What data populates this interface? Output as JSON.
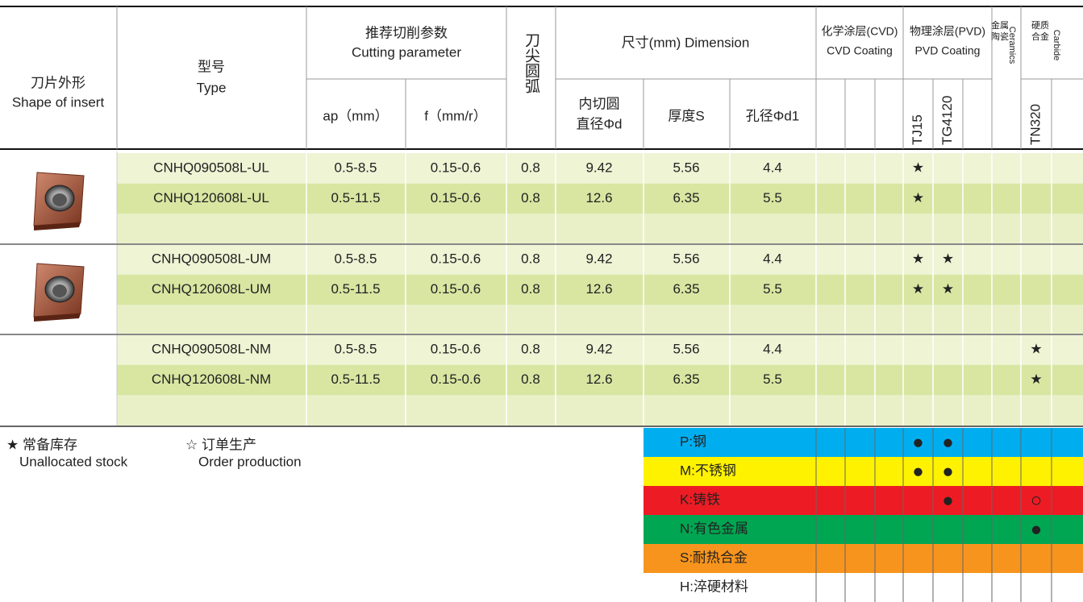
{
  "header": {
    "shape": [
      "刀片外形",
      "Shape of insert"
    ],
    "type": [
      "型号",
      "Type"
    ],
    "cutting": [
      "推荐切削参数",
      "Cutting parameter"
    ],
    "ap": "ap（mm）",
    "f": "f（mm/r）",
    "nose": "刀尖圆弧",
    "dimension": "尺寸(mm) Dimension",
    "d": [
      "内切圆",
      "直径Φd"
    ],
    "s": "厚度S",
    "d1": "孔径Φd1",
    "cvd": [
      "化学涂层(CVD)",
      "CVD Coating"
    ],
    "pvd": [
      "物理涂层(PVD)",
      "PVD Coating"
    ],
    "ceramics": [
      "金属",
      "陶瓷",
      "Ceramics"
    ],
    "carbide": [
      "硬质",
      "合金",
      "Carbide"
    ],
    "grades": [
      null,
      null,
      null,
      "TJ15",
      "TG4120",
      null,
      null,
      "TN320",
      null
    ]
  },
  "groups": [
    {
      "rows": [
        {
          "type": "CNHQ090508L-UL",
          "ap": "0.5-8.5",
          "f": "0.15-0.6",
          "r": "0.8",
          "d": "9.42",
          "s": "5.56",
          "d1": "4.4",
          "grades": [
            null,
            null,
            null,
            "★",
            null,
            null,
            null,
            null,
            null
          ]
        },
        {
          "type": "CNHQ120608L-UL",
          "ap": "0.5-11.5",
          "f": "0.15-0.6",
          "r": "0.8",
          "d": "12.6",
          "s": "6.35",
          "d1": "5.5",
          "grades": [
            null,
            null,
            null,
            "★",
            null,
            null,
            null,
            null,
            null
          ]
        }
      ]
    },
    {
      "rows": [
        {
          "type": "CNHQ090508L-UM",
          "ap": "0.5-8.5",
          "f": "0.15-0.6",
          "r": "0.8",
          "d": "9.42",
          "s": "5.56",
          "d1": "4.4",
          "grades": [
            null,
            null,
            null,
            "★",
            "★",
            null,
            null,
            null,
            null
          ]
        },
        {
          "type": "CNHQ120608L-UM",
          "ap": "0.5-11.5",
          "f": "0.15-0.6",
          "r": "0.8",
          "d": "12.6",
          "s": "6.35",
          "d1": "5.5",
          "grades": [
            null,
            null,
            null,
            "★",
            "★",
            null,
            null,
            null,
            null
          ]
        }
      ]
    },
    {
      "rows": [
        {
          "type": "CNHQ090508L-NM",
          "ap": "0.5-8.5",
          "f": "0.15-0.6",
          "r": "0.8",
          "d": "9.42",
          "s": "5.56",
          "d1": "4.4",
          "grades": [
            null,
            null,
            null,
            null,
            null,
            null,
            null,
            "★",
            null
          ]
        },
        {
          "type": "CNHQ120608L-NM",
          "ap": "0.5-11.5",
          "f": "0.15-0.6",
          "r": "0.8",
          "d": "12.6",
          "s": "6.35",
          "d1": "5.5",
          "grades": [
            null,
            null,
            null,
            null,
            null,
            null,
            null,
            "★",
            null
          ]
        }
      ]
    }
  ],
  "legend": {
    "stock": [
      "★ 常备库存",
      "Unallocated stock"
    ],
    "order": [
      "☆ 订单生产",
      "Order production"
    ]
  },
  "materials": [
    {
      "label": "P:钢",
      "color": "#00aeef",
      "marks": [
        null,
        null,
        null,
        "●",
        "●",
        null,
        null,
        null,
        null
      ]
    },
    {
      "label": "M:不锈钢",
      "color": "#fff200",
      "marks": [
        null,
        null,
        null,
        "●",
        "●",
        null,
        null,
        null,
        null
      ]
    },
    {
      "label": "K:铸铁",
      "color": "#ed1c24",
      "marks": [
        null,
        null,
        null,
        null,
        "●",
        null,
        null,
        "○",
        null
      ]
    },
    {
      "label": "N:有色金属",
      "color": "#00a651",
      "marks": [
        null,
        null,
        null,
        null,
        null,
        null,
        null,
        "●",
        null
      ]
    },
    {
      "label": "S:耐热合金",
      "color": "#f7941d",
      "marks": [
        null,
        null,
        null,
        null,
        null,
        null,
        null,
        null,
        null
      ]
    },
    {
      "label": "H:淬硬材料",
      "color": "#ffffff",
      "marks": [
        null,
        null,
        null,
        null,
        null,
        null,
        null,
        null,
        null
      ]
    }
  ]
}
